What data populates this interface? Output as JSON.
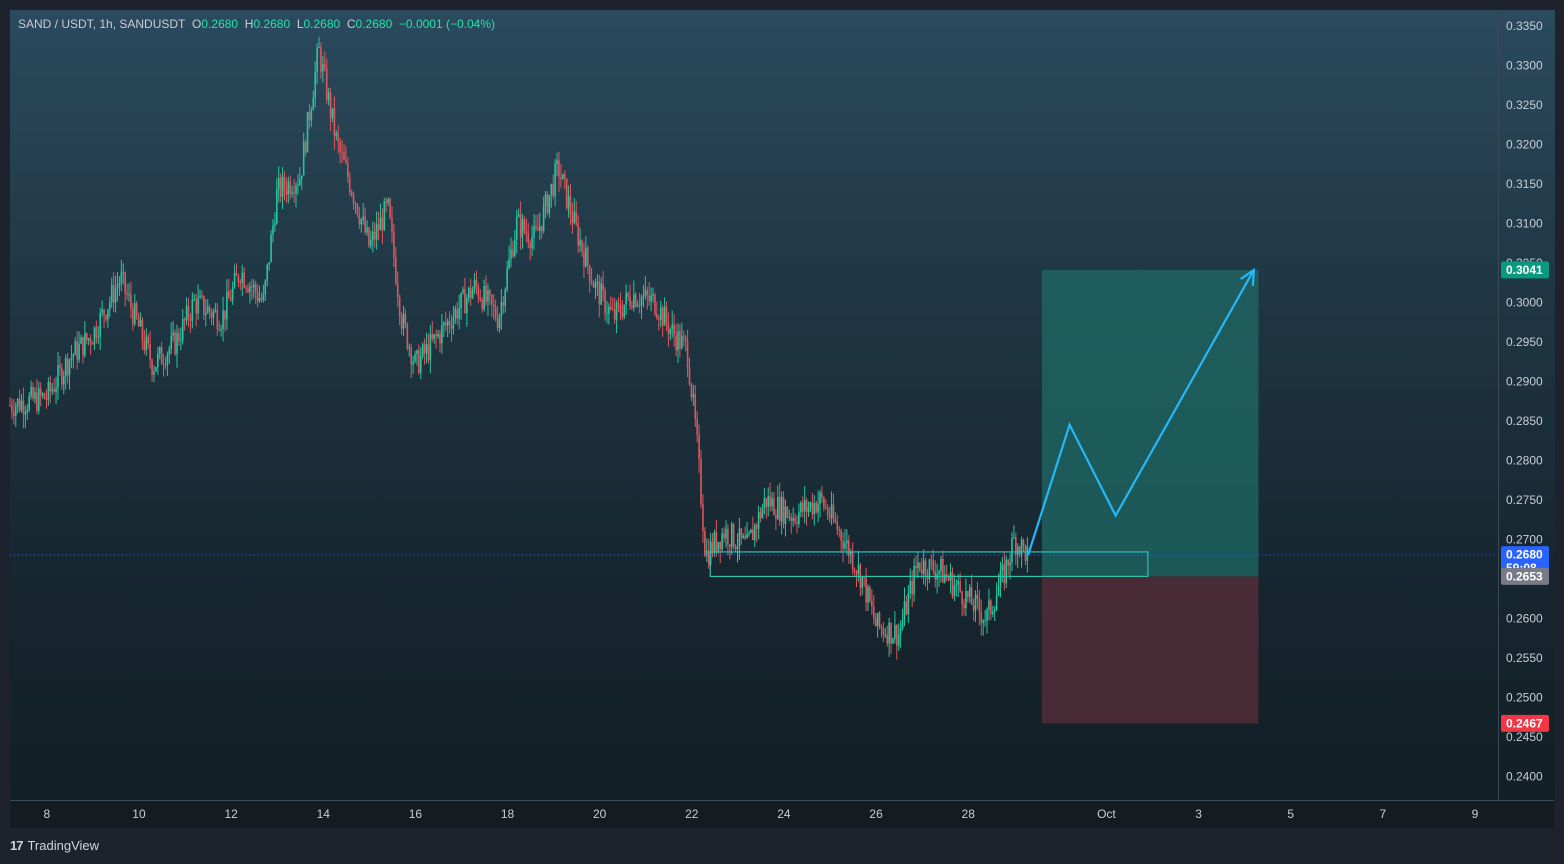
{
  "header": {
    "symbol": "SAND / USDT, 1h, SANDUSDT",
    "open_label": "O",
    "open": "0.2680",
    "high_label": "H",
    "high": "0.2680",
    "low_label": "L",
    "low": "0.2680",
    "close_label": "C",
    "close": "0.2680",
    "change": "−0.0001 (−0.04%)"
  },
  "branding": {
    "logo": "17",
    "name": "TradingView"
  },
  "chart_data": {
    "type": "candlestick",
    "title": "SAND / USDT, 1h, SANDUSDT",
    "xlabel": "",
    "ylabel": "",
    "ylim": [
      0.237,
      0.337
    ],
    "y_ticks": [
      "0.2400",
      "0.2450",
      "0.2500",
      "0.2550",
      "0.2600",
      "0.2650",
      "0.2700",
      "0.2750",
      "0.2800",
      "0.2850",
      "0.2900",
      "0.2950",
      "0.3000",
      "0.3050",
      "0.3100",
      "0.3150",
      "0.3200",
      "0.3250",
      "0.3300",
      "0.3350"
    ],
    "x_ticks": [
      {
        "label": "8",
        "day": 8
      },
      {
        "label": "10",
        "day": 10
      },
      {
        "label": "12",
        "day": 12
      },
      {
        "label": "14",
        "day": 14
      },
      {
        "label": "16",
        "day": 16
      },
      {
        "label": "18",
        "day": 18
      },
      {
        "label": "20",
        "day": 20
      },
      {
        "label": "22",
        "day": 22
      },
      {
        "label": "24",
        "day": 24
      },
      {
        "label": "26",
        "day": 26
      },
      {
        "label": "28",
        "day": 28
      },
      {
        "label": "Oct",
        "day": 31
      },
      {
        "label": "3",
        "day": 33
      },
      {
        "label": "5",
        "day": 35
      },
      {
        "label": "7",
        "day": 37
      },
      {
        "label": "9",
        "day": 39
      }
    ],
    "x_range_days": [
      7.2,
      39.5
    ],
    "price_path": [
      {
        "day": 7.2,
        "price": 0.287
      },
      {
        "day": 8.0,
        "price": 0.288
      },
      {
        "day": 8.5,
        "price": 0.293
      },
      {
        "day": 9.0,
        "price": 0.296
      },
      {
        "day": 9.6,
        "price": 0.303
      },
      {
        "day": 10.3,
        "price": 0.292
      },
      {
        "day": 10.8,
        "price": 0.295
      },
      {
        "day": 11.2,
        "price": 0.3
      },
      {
        "day": 11.8,
        "price": 0.298
      },
      {
        "day": 12.2,
        "price": 0.304
      },
      {
        "day": 12.7,
        "price": 0.3
      },
      {
        "day": 13.0,
        "price": 0.314
      },
      {
        "day": 13.5,
        "price": 0.316
      },
      {
        "day": 13.9,
        "price": 0.332
      },
      {
        "day": 14.3,
        "price": 0.32
      },
      {
        "day": 14.7,
        "price": 0.313
      },
      {
        "day": 15.0,
        "price": 0.307
      },
      {
        "day": 15.4,
        "price": 0.312
      },
      {
        "day": 15.7,
        "price": 0.298
      },
      {
        "day": 16.0,
        "price": 0.292
      },
      {
        "day": 16.4,
        "price": 0.295
      },
      {
        "day": 16.9,
        "price": 0.299
      },
      {
        "day": 17.3,
        "price": 0.302
      },
      {
        "day": 17.8,
        "price": 0.298
      },
      {
        "day": 18.2,
        "price": 0.31
      },
      {
        "day": 18.6,
        "price": 0.308
      },
      {
        "day": 19.1,
        "price": 0.317
      },
      {
        "day": 19.5,
        "price": 0.309
      },
      {
        "day": 19.9,
        "price": 0.302
      },
      {
        "day": 20.3,
        "price": 0.298
      },
      {
        "day": 20.7,
        "price": 0.301
      },
      {
        "day": 21.2,
        "price": 0.3
      },
      {
        "day": 21.6,
        "price": 0.296
      },
      {
        "day": 21.9,
        "price": 0.294
      },
      {
        "day": 22.1,
        "price": 0.283
      },
      {
        "day": 22.3,
        "price": 0.268
      },
      {
        "day": 22.7,
        "price": 0.271
      },
      {
        "day": 23.2,
        "price": 0.269
      },
      {
        "day": 23.6,
        "price": 0.275
      },
      {
        "day": 24.2,
        "price": 0.273
      },
      {
        "day": 24.8,
        "price": 0.275
      },
      {
        "day": 25.3,
        "price": 0.27
      },
      {
        "day": 25.7,
        "price": 0.265
      },
      {
        "day": 26.0,
        "price": 0.259
      },
      {
        "day": 26.5,
        "price": 0.258
      },
      {
        "day": 26.9,
        "price": 0.267
      },
      {
        "day": 27.4,
        "price": 0.266
      },
      {
        "day": 27.9,
        "price": 0.263
      },
      {
        "day": 28.4,
        "price": 0.26
      },
      {
        "day": 28.8,
        "price": 0.266
      },
      {
        "day": 29.0,
        "price": 0.27
      },
      {
        "day": 29.3,
        "price": 0.268
      }
    ],
    "last_price": "0.2680",
    "countdown": "59:08",
    "entry_price": "0.2653",
    "target_price": "0.3041",
    "stop_price": "0.2467",
    "position": {
      "day_start": 29.6,
      "day_end": 34.3,
      "entry": 0.2653,
      "target": 0.3041,
      "stop": 0.2467
    },
    "zone": {
      "day_start": 22.4,
      "day_end": 31.9,
      "top": 0.2684,
      "bottom": 0.2653
    },
    "projection": [
      {
        "day": 29.3,
        "price": 0.268
      },
      {
        "day": 30.2,
        "price": 0.2845
      },
      {
        "day": 31.2,
        "price": 0.273
      },
      {
        "day": 34.2,
        "price": 0.3041
      }
    ],
    "colors": {
      "up": "#26c6a0",
      "down": "#e0565b",
      "target_fill": "#1f6a66",
      "stop_fill": "#5a2e38",
      "zone_stroke": "#2ec4a8",
      "projection": "#29b6f6",
      "last_price_badge": "#2962ff",
      "entry_badge": "#787b86",
      "target_badge": "#089981",
      "stop_badge": "#f23645"
    }
  }
}
